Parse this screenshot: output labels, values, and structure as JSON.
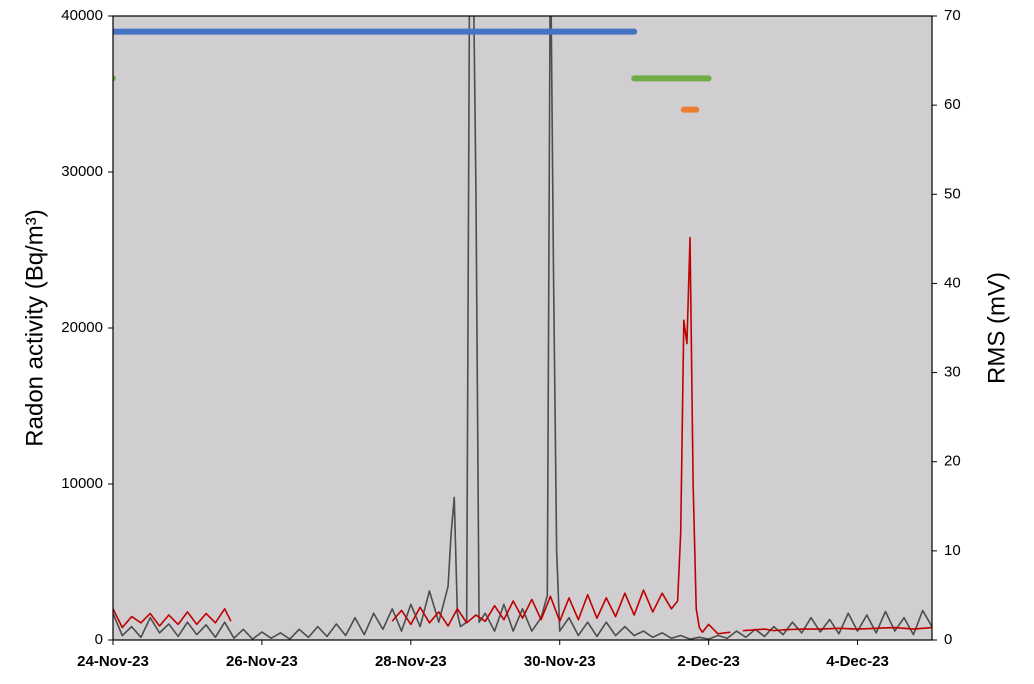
{
  "chart_data": {
    "type": "line",
    "y_label": "Radon activity (Bq/m³)",
    "y2_label": "RMS (mV)",
    "xlim": [
      "2023-11-24T00:00",
      "2023-12-05T00:00"
    ],
    "xticks": [
      {
        "value": "2023-11-24T00:00",
        "label": "24-Nov-23"
      },
      {
        "value": "2023-11-26T00:00",
        "label": "26-Nov-23"
      },
      {
        "value": "2023-11-28T00:00",
        "label": "28-Nov-23"
      },
      {
        "value": "2023-11-30T00:00",
        "label": "30-Nov-23"
      },
      {
        "value": "2023-12-02T00:00",
        "label": "2-Dec-23"
      },
      {
        "value": "2023-12-04T00:00",
        "label": "4-Dec-23"
      }
    ],
    "ylim": [
      0,
      40000
    ],
    "yticks": [
      0,
      10000,
      20000,
      30000,
      40000
    ],
    "y2lim": [
      0,
      70
    ],
    "y2ticks": [
      0,
      10,
      20,
      30,
      40,
      50,
      60,
      70
    ],
    "background": "#d0ced0",
    "series": [
      {
        "color": "#4d4d4d",
        "axis": "y2",
        "x": [
          "2023-11-24T00:00",
          "2023-11-24T03:00",
          "2023-11-24T06:00",
          "2023-11-24T09:00",
          "2023-11-24T12:00",
          "2023-11-24T15:00",
          "2023-11-24T18:00",
          "2023-11-24T21:00",
          "2023-11-25T00:00",
          "2023-11-25T03:00",
          "2023-11-25T06:00",
          "2023-11-25T09:00",
          "2023-11-25T12:00",
          "2023-11-25T15:00",
          "2023-11-25T18:00",
          "2023-11-25T21:00",
          "2023-11-26T00:00",
          "2023-11-26T03:00",
          "2023-11-26T06:00",
          "2023-11-26T09:00",
          "2023-11-26T12:00",
          "2023-11-26T15:00",
          "2023-11-26T18:00",
          "2023-11-26T21:00",
          "2023-11-27T00:00",
          "2023-11-27T03:00",
          "2023-11-27T06:00",
          "2023-11-27T09:00",
          "2023-11-27T12:00",
          "2023-11-27T15:00",
          "2023-11-27T18:00",
          "2023-11-27T21:00",
          "2023-11-28T00:00",
          "2023-11-28T03:00",
          "2023-11-28T06:00",
          "2023-11-28T09:00",
          "2023-11-28T12:00",
          "2023-11-28T13:00",
          "2023-11-28T14:00",
          "2023-11-28T15:00",
          "2023-11-28T16:00",
          "2023-11-28T18:00",
          "2023-11-28T19:00",
          "2023-11-28T20:00",
          "2023-11-28T21:00",
          "2023-11-28T22:00",
          "2023-11-29T00:00",
          "2023-11-29T03:00",
          "2023-11-29T06:00",
          "2023-11-29T09:00",
          "2023-11-29T12:00",
          "2023-11-29T15:00",
          "2023-11-29T18:00",
          "2023-11-29T20:00",
          "2023-11-29T21:00",
          "2023-11-29T22:00",
          "2023-11-29T23:00",
          "2023-11-30T00:00",
          "2023-11-30T03:00",
          "2023-11-30T06:00",
          "2023-11-30T09:00",
          "2023-11-30T12:00",
          "2023-11-30T15:00",
          "2023-11-30T18:00",
          "2023-11-30T21:00",
          "2023-12-01T00:00",
          "2023-12-01T03:00",
          "2023-12-01T06:00",
          "2023-12-01T09:00",
          "2023-12-01T12:00",
          "2023-12-01T15:00",
          "2023-12-01T18:00",
          "2023-12-01T21:00",
          "2023-12-02T00:00",
          "2023-12-02T03:00",
          "2023-12-02T06:00",
          "2023-12-02T09:00",
          "2023-12-02T12:00",
          "2023-12-02T15:00",
          "2023-12-02T18:00",
          "2023-12-02T21:00",
          "2023-12-03T00:00",
          "2023-12-03T03:00",
          "2023-12-03T06:00",
          "2023-12-03T09:00",
          "2023-12-03T12:00",
          "2023-12-03T15:00",
          "2023-12-03T18:00",
          "2023-12-03T21:00",
          "2023-12-04T00:00",
          "2023-12-04T03:00",
          "2023-12-04T06:00",
          "2023-12-04T09:00",
          "2023-12-04T12:00",
          "2023-12-04T15:00",
          "2023-12-04T18:00",
          "2023-12-04T21:00",
          "2023-12-05T00:00"
        ],
        "values": [
          3,
          0.5,
          1.5,
          0.3,
          2.5,
          0.8,
          1.8,
          0.4,
          2,
          0.6,
          1.7,
          0.3,
          2,
          0.2,
          1.2,
          0.1,
          0.9,
          0.2,
          0.8,
          0.1,
          1.2,
          0.3,
          1.5,
          0.4,
          1.8,
          0.5,
          2.5,
          0.6,
          3,
          1.2,
          3.5,
          1,
          4,
          1.5,
          5.5,
          2,
          6,
          12,
          16,
          3,
          1.5,
          2,
          80,
          80,
          50,
          2,
          3,
          1,
          4,
          1,
          3.5,
          1,
          2.5,
          5,
          80,
          41,
          10,
          1,
          2.5,
          0.5,
          2,
          0.4,
          2,
          0.5,
          1.5,
          0.5,
          1,
          0.3,
          0.8,
          0.2,
          0.5,
          0.1,
          0.3,
          0.1,
          0.5,
          0.2,
          1,
          0.3,
          1.2,
          0.4,
          1.5,
          0.6,
          2,
          0.8,
          2.5,
          0.9,
          2.3,
          0.7,
          3,
          1,
          2.8,
          0.8,
          3.2,
          1,
          2.5,
          0.6,
          3.3,
          1.5
        ]
      },
      {
        "color": "#c00000",
        "x": [
          "2023-11-24T00:00",
          "2023-11-24T03:00",
          "2023-11-24T06:00",
          "2023-11-24T09:00",
          "2023-11-24T12:00",
          "2023-11-24T15:00",
          "2023-11-24T18:00",
          "2023-11-24T21:00",
          "2023-11-25T00:00",
          "2023-11-25T03:00",
          "2023-11-25T06:00",
          "2023-11-25T09:00",
          "2023-11-25T12:00",
          "2023-11-25T14:00",
          "2023-11-25T18:00",
          "2023-11-27T18:00",
          "2023-11-27T21:00",
          "2023-11-28T00:00",
          "2023-11-28T03:00",
          "2023-11-28T06:00",
          "2023-11-28T09:00",
          "2023-11-28T12:00",
          "2023-11-28T15:00",
          "2023-11-28T18:00",
          "2023-11-28T21:00",
          "2023-11-29T00:00",
          "2023-11-29T03:00",
          "2023-11-29T06:00",
          "2023-11-29T09:00",
          "2023-11-29T12:00",
          "2023-11-29T15:00",
          "2023-11-29T18:00",
          "2023-11-29T21:00",
          "2023-11-30T00:00",
          "2023-11-30T03:00",
          "2023-11-30T06:00",
          "2023-11-30T09:00",
          "2023-11-30T12:00",
          "2023-11-30T15:00",
          "2023-11-30T18:00",
          "2023-11-30T21:00",
          "2023-12-01T00:00",
          "2023-12-01T03:00",
          "2023-12-01T06:00",
          "2023-12-01T09:00",
          "2023-12-01T12:00",
          "2023-12-01T14:00",
          "2023-12-01T15:00",
          "2023-12-01T16:00",
          "2023-12-01T17:00",
          "2023-12-01T18:00",
          "2023-12-01T19:00",
          "2023-12-01T20:00",
          "2023-12-01T21:00",
          "2023-12-01T22:00",
          "2023-12-02T00:00",
          "2023-12-02T03:00",
          "2023-12-02T07:00",
          "2023-12-02T09:00",
          "2023-12-02T11:00",
          "2023-12-02T15:00",
          "2023-12-02T18:00",
          "2023-12-02T21:00",
          "2023-12-03T00:00",
          "2023-12-03T06:00",
          "2023-12-03T12:00",
          "2023-12-03T18:00",
          "2023-12-04T00:00",
          "2023-12-04T06:00",
          "2023-12-04T12:00",
          "2023-12-04T18:00",
          "2023-12-05T00:00"
        ],
        "values": [
          2000,
          800,
          1500,
          1100,
          1700,
          900,
          1600,
          1000,
          1800,
          1000,
          1700,
          1100,
          2000,
          1200,
          null,
          1200,
          1900,
          1000,
          2100,
          1100,
          1800,
          900,
          2000,
          1100,
          1600,
          1200,
          2200,
          1300,
          2500,
          1400,
          2600,
          1300,
          2800,
          1200,
          2700,
          1300,
          2900,
          1400,
          2700,
          1500,
          3000,
          1600,
          3200,
          1800,
          3000,
          2000,
          2500,
          6900,
          20500,
          19000,
          25800,
          10000,
          2000,
          800,
          500,
          1000,
          400,
          500,
          null,
          600,
          650,
          700,
          600,
          650,
          700,
          700,
          750,
          700,
          750,
          800,
          700,
          800
        ]
      },
      {
        "color": "#4472c4",
        "x": [
          "2023-11-24T00:00",
          "2023-12-01T00:00"
        ],
        "values": [
          39000,
          39000
        ]
      },
      {
        "color": "#70ad47",
        "x": [
          "2023-11-24T00:00"
        ],
        "values": [
          36000
        ]
      },
      {
        "color": "#70ad47",
        "x": [
          "2023-12-01T00:00",
          "2023-12-02T00:00"
        ],
        "values": [
          36000,
          36000
        ]
      },
      {
        "color": "#ed7d31",
        "x": [
          "2023-12-01T16:00",
          "2023-12-01T20:00"
        ],
        "values": [
          34000,
          34000
        ]
      }
    ]
  }
}
